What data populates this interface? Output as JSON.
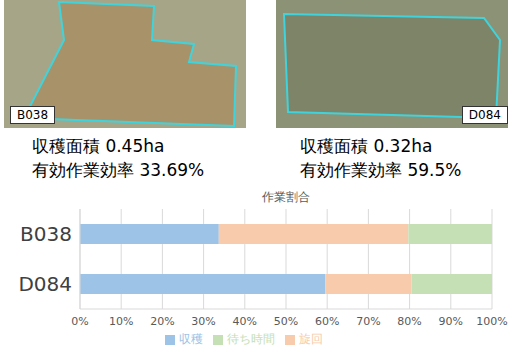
{
  "panels": [
    {
      "label": "B038",
      "lines": [
        "収穫面積 0.45ha",
        "有効作業効率 33.69%"
      ]
    },
    {
      "label": "D084",
      "lines": [
        "収穫面積 0.32ha",
        "有効作業効率 59.5%"
      ]
    }
  ],
  "chart_data": {
    "type": "bar",
    "title": "作業割合",
    "orientation": "horizontal",
    "stacked": true,
    "grid": true,
    "legend": "bottom",
    "categories": [
      "B038",
      "D084"
    ],
    "series": [
      {
        "name": "収穫",
        "color": "#9dc3e6",
        "values": [
          33.69,
          59.5
        ]
      },
      {
        "name": "旋回",
        "color": "#f8cbad",
        "values": [
          46.0,
          21.0
        ]
      },
      {
        "name": "待ち時間",
        "color": "#c5e0b4",
        "values": [
          20.3,
          19.5
        ]
      }
    ],
    "xlim": [
      0,
      100
    ],
    "xticks": [
      {
        "value": 0,
        "label": "0%"
      },
      {
        "value": 10,
        "label": "10%"
      },
      {
        "value": 20,
        "label": "20%"
      },
      {
        "value": 30,
        "label": "30%"
      },
      {
        "value": 40,
        "label": "40%"
      },
      {
        "value": 50,
        "label": "50%"
      },
      {
        "value": 60,
        "label": "60%"
      },
      {
        "value": 70,
        "label": "70%"
      },
      {
        "value": 80,
        "label": "80%"
      },
      {
        "value": 90,
        "label": "90%"
      },
      {
        "value": 100,
        "label": "100%"
      }
    ]
  }
}
